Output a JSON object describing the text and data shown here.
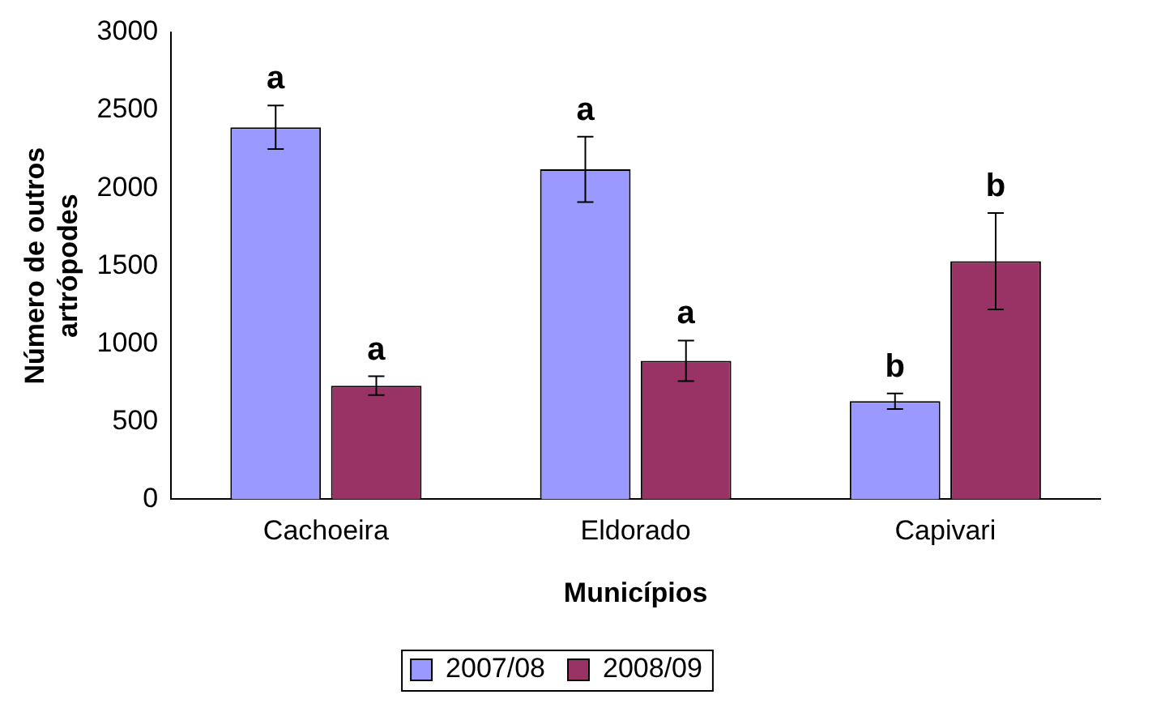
{
  "chart_data": {
    "type": "bar",
    "xlabel": "Municípios",
    "ylabel": "Número de outros artrópodes",
    "categories": [
      "Cachoeira",
      "Eldorado",
      "Capivari"
    ],
    "series": [
      {
        "name": "2007/08",
        "color": "#9999ff",
        "values": [
          2390,
          2120,
          630
        ],
        "errors": [
          140,
          210,
          50
        ]
      },
      {
        "name": "2008/09",
        "color": "#993366",
        "values": [
          730,
          890,
          1530
        ],
        "errors": [
          60,
          130,
          310
        ]
      }
    ],
    "ylim": [
      0,
      3000
    ],
    "yticks": [
      0,
      500,
      1000,
      1500,
      2000,
      2500,
      3000
    ],
    "grid": false,
    "legend": "bottom",
    "annotations": [
      {
        "text": "a",
        "x": "Cachoeira",
        "y": 2390
      },
      {
        "text": "a",
        "x": "Cachoeira",
        "y": 730
      },
      {
        "text": "a",
        "x": "Eldorado",
        "y": 2120
      },
      {
        "text": "a",
        "x": "Eldorado",
        "y": 890
      },
      {
        "text": "b",
        "x": "Capivari",
        "y": 630
      },
      {
        "text": "b",
        "x": "Capivari",
        "y": 1530
      }
    ]
  }
}
